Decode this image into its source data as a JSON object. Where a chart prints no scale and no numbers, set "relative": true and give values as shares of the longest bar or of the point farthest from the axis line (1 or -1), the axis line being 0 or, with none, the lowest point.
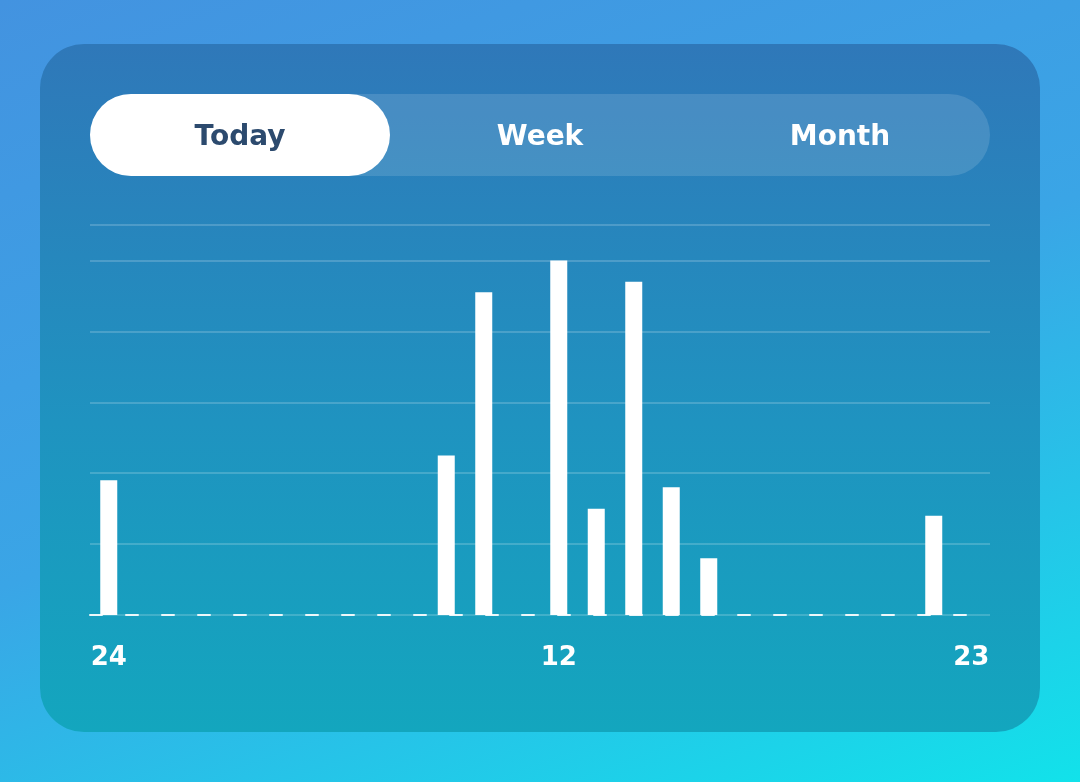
{
  "chart_data": {
    "type": "bar",
    "relative": true,
    "grid": "y",
    "annotations": [
      "Today",
      "Week",
      "Month"
    ],
    "categories": [
      "24",
      null,
      null,
      null,
      null,
      null,
      null,
      null,
      null,
      null,
      null,
      null,
      "12",
      null,
      null,
      null,
      null,
      null,
      null,
      null,
      null,
      null,
      null,
      "23"
    ],
    "values": [
      0.38,
      0,
      0,
      0,
      0,
      0,
      0,
      0,
      0,
      0.45,
      0.91,
      0,
      1,
      0.3,
      0.94,
      0.36,
      0.16,
      0,
      0,
      0,
      0,
      0,
      0.28,
      0
    ],
    "color": "#ffffff"
  }
}
